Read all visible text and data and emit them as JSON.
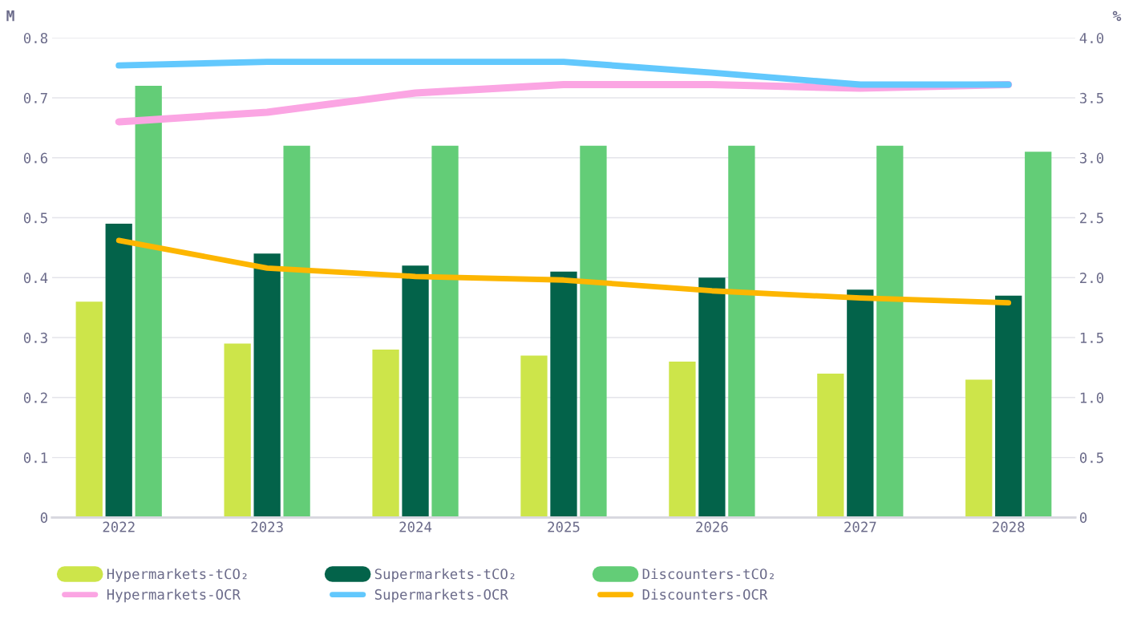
{
  "chart_data": {
    "type": "bar",
    "ylabel": "M",
    "y2label": "%",
    "categories": [
      "2022",
      "2023",
      "2024",
      "2025",
      "2026",
      "2027",
      "2028"
    ],
    "series": [
      {
        "name": "Hypermarkets-tCO₂",
        "color": "#cde54a",
        "values": [
          0.36,
          0.29,
          0.28,
          0.27,
          0.26,
          0.24,
          0.23
        ]
      },
      {
        "name": "Supermarkets-tCO₂",
        "color": "#03634a",
        "values": [
          0.49,
          0.44,
          0.42,
          0.41,
          0.4,
          0.38,
          0.37
        ]
      },
      {
        "name": "Discounters-tCO₂",
        "color": "#63cd77",
        "values": [
          0.72,
          0.62,
          0.62,
          0.62,
          0.62,
          0.62,
          0.61
        ]
      },
      {
        "name": "Hypermarkets-OCR",
        "type": "line",
        "axis": "y2",
        "color": "#fba5e3",
        "values": [
          3.3,
          3.38,
          3.54,
          3.61,
          3.61,
          3.58,
          3.61
        ]
      },
      {
        "name": "Supermarkets-OCR",
        "type": "line",
        "axis": "y2",
        "color": "#62c8fd",
        "values": [
          3.77,
          3.8,
          3.8,
          3.8,
          3.71,
          3.61,
          3.61
        ]
      },
      {
        "name": "Discounters-OCR",
        "type": "line",
        "axis": "y2",
        "color": "#fdb600",
        "values": [
          2.31,
          2.08,
          2.01,
          1.98,
          1.89,
          1.83,
          1.79
        ]
      }
    ],
    "ylim": [
      0,
      0.8
    ],
    "yticks": [
      {
        "value": 0,
        "label": "0"
      },
      0.1,
      0.2,
      0.3,
      0.4,
      0.5,
      0.6,
      0.7,
      0.8
    ],
    "y2lim": [
      0,
      4
    ],
    "y2ticks": [
      {
        "value": 0,
        "label": "0"
      },
      {
        "value": 0.5,
        "label": "0.5"
      },
      {
        "value": 1,
        "label": "1.0"
      },
      {
        "value": 1.5,
        "label": "1.5"
      },
      {
        "value": 2,
        "label": "2.0"
      },
      {
        "value": 2.5,
        "label": "2.5"
      },
      {
        "value": 3,
        "label": "3.0"
      },
      {
        "value": 3.5,
        "label": "3.5"
      },
      {
        "value": 4,
        "label": "4.0"
      }
    ],
    "grid": "y",
    "legend": "bottom"
  }
}
